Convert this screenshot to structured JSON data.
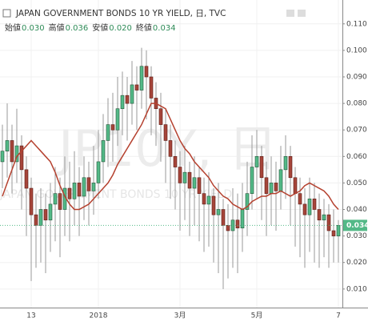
{
  "chart_data": {
    "type": "candlestick",
    "title": "JAPAN GOVERNMENT BONDS 10 YR YIELD, 日, TVC",
    "ohlc_legend": [
      {
        "label": "始値",
        "value": "0.030"
      },
      {
        "label": "高値",
        "value": "0.036"
      },
      {
        "label": "安値",
        "value": "0.020"
      },
      {
        "label": "終値",
        "value": "0.034"
      }
    ],
    "watermark": {
      "symbol": "JP10Y, 日",
      "description": "JAPAN GOVERNMENT BONDS 10 YR YIELD"
    },
    "categories": [
      null,
      null,
      null,
      null,
      null,
      null,
      "13",
      null,
      null,
      null,
      null,
      null,
      null,
      null,
      null,
      null,
      null,
      null,
      null,
      null,
      "2018",
      null,
      null,
      null,
      null,
      null,
      null,
      null,
      null,
      null,
      null,
      null,
      null,
      null,
      null,
      null,
      null,
      "3月",
      null,
      null,
      null,
      null,
      null,
      null,
      null,
      null,
      null,
      null,
      null,
      null,
      null,
      null,
      null,
      "5月",
      null,
      null,
      null,
      null,
      null,
      null,
      null,
      null,
      null,
      null,
      null,
      null,
      null,
      null,
      null,
      null,
      "7"
    ],
    "open": [
      0.058,
      0.062,
      0.066,
      0.058,
      0.064,
      0.055,
      0.048,
      0.038,
      0.034,
      0.04,
      0.036,
      0.042,
      0.046,
      0.04,
      0.048,
      0.044,
      0.05,
      0.045,
      0.052,
      0.047,
      0.05,
      0.058,
      0.066,
      0.072,
      0.07,
      0.078,
      0.083,
      0.08,
      0.087,
      0.085,
      0.094,
      0.09,
      0.082,
      0.078,
      0.072,
      0.066,
      0.06,
      0.056,
      0.05,
      0.054,
      0.048,
      0.052,
      0.046,
      0.042,
      0.045,
      0.038,
      0.04,
      0.034,
      0.032,
      0.036,
      0.033,
      0.04,
      0.046,
      0.056,
      0.06,
      0.052,
      0.046,
      0.05,
      0.047,
      0.055,
      0.06,
      0.052,
      0.046,
      0.042,
      0.038,
      0.044,
      0.04,
      0.036,
      0.038,
      0.032,
      0.03
    ],
    "high": [
      0.072,
      0.08,
      0.072,
      0.078,
      0.068,
      0.06,
      0.052,
      0.046,
      0.048,
      0.046,
      0.05,
      0.056,
      0.052,
      0.06,
      0.058,
      0.062,
      0.056,
      0.06,
      0.058,
      0.064,
      0.07,
      0.076,
      0.082,
      0.084,
      0.09,
      0.092,
      0.09,
      0.096,
      0.094,
      0.101,
      0.1,
      0.094,
      0.088,
      0.084,
      0.078,
      0.072,
      0.066,
      0.062,
      0.064,
      0.058,
      0.06,
      0.056,
      0.052,
      0.054,
      0.048,
      0.05,
      0.044,
      0.042,
      0.048,
      0.046,
      0.05,
      0.058,
      0.068,
      0.07,
      0.064,
      0.058,
      0.06,
      0.058,
      0.064,
      0.068,
      0.064,
      0.056,
      0.052,
      0.048,
      0.052,
      0.05,
      0.046,
      0.044,
      0.042,
      0.04,
      0.036
    ],
    "low": [
      0.048,
      0.052,
      0.046,
      0.05,
      0.04,
      0.03,
      0.013,
      0.018,
      0.02,
      0.016,
      0.024,
      0.028,
      0.022,
      0.03,
      0.028,
      0.034,
      0.03,
      0.036,
      0.034,
      0.038,
      0.044,
      0.05,
      0.056,
      0.058,
      0.064,
      0.068,
      0.066,
      0.072,
      0.07,
      0.078,
      0.074,
      0.068,
      0.064,
      0.058,
      0.05,
      0.044,
      0.04,
      0.032,
      0.036,
      0.03,
      0.034,
      0.028,
      0.024,
      0.026,
      0.02,
      0.016,
      0.01,
      0.014,
      0.018,
      0.016,
      0.024,
      0.03,
      0.04,
      0.044,
      0.036,
      0.03,
      0.034,
      0.032,
      0.04,
      0.044,
      0.034,
      0.026,
      0.022,
      0.018,
      0.024,
      0.02,
      0.018,
      0.022,
      0.018,
      0.02,
      0.02
    ],
    "close": [
      0.062,
      0.066,
      0.058,
      0.064,
      0.055,
      0.048,
      0.038,
      0.034,
      0.04,
      0.036,
      0.042,
      0.046,
      0.04,
      0.048,
      0.044,
      0.05,
      0.045,
      0.052,
      0.047,
      0.05,
      0.058,
      0.066,
      0.072,
      0.07,
      0.078,
      0.083,
      0.08,
      0.087,
      0.085,
      0.094,
      0.09,
      0.082,
      0.078,
      0.072,
      0.066,
      0.06,
      0.056,
      0.05,
      0.054,
      0.048,
      0.052,
      0.046,
      0.042,
      0.045,
      0.038,
      0.04,
      0.034,
      0.032,
      0.036,
      0.033,
      0.04,
      0.046,
      0.056,
      0.06,
      0.052,
      0.046,
      0.05,
      0.047,
      0.055,
      0.06,
      0.052,
      0.046,
      0.042,
      0.038,
      0.044,
      0.04,
      0.036,
      0.038,
      0.032,
      0.03,
      0.034
    ],
    "up_color": "#53b987",
    "down_color": "#a6453a",
    "moving_average": {
      "color": "#b5412f",
      "values": [
        0.045,
        0.05,
        0.055,
        0.06,
        0.062,
        0.064,
        0.066,
        0.064,
        0.062,
        0.06,
        0.058,
        0.054,
        0.049,
        0.045,
        0.042,
        0.04,
        0.04,
        0.041,
        0.042,
        0.044,
        0.046,
        0.048,
        0.05,
        0.053,
        0.057,
        0.06,
        0.063,
        0.066,
        0.069,
        0.072,
        0.076,
        0.08,
        0.08,
        0.079,
        0.078,
        0.074,
        0.07,
        0.066,
        0.063,
        0.061,
        0.058,
        0.056,
        0.054,
        0.052,
        0.049,
        0.047,
        0.045,
        0.044,
        0.042,
        0.041,
        0.04,
        0.041,
        0.043,
        0.044,
        0.045,
        0.045,
        0.046,
        0.046,
        0.047,
        0.046,
        0.045,
        0.046,
        0.047,
        0.049,
        0.05,
        0.049,
        0.048,
        0.047,
        0.045,
        0.042,
        0.04
      ]
    },
    "ylim": [
      0.003,
      0.119
    ],
    "yticks": [
      {
        "value": 0.01,
        "label": "0.010"
      },
      {
        "value": 0.02,
        "label": "0.020"
      },
      {
        "value": 0.03,
        "label": "0.030"
      },
      {
        "value": 0.04,
        "label": "0.040"
      },
      {
        "value": 0.05,
        "label": "0.050"
      },
      {
        "value": 0.06,
        "label": "0.060"
      },
      {
        "value": 0.07,
        "label": "0.070"
      },
      {
        "value": 0.08,
        "label": "0.080"
      },
      {
        "value": 0.09,
        "label": "0.090"
      },
      {
        "value": 0.1,
        "label": "0.100"
      },
      {
        "value": 0.11,
        "label": "0.110"
      }
    ],
    "grid": true,
    "last_price": {
      "value": 0.034,
      "label": "0.034",
      "color": "#53b987"
    }
  }
}
